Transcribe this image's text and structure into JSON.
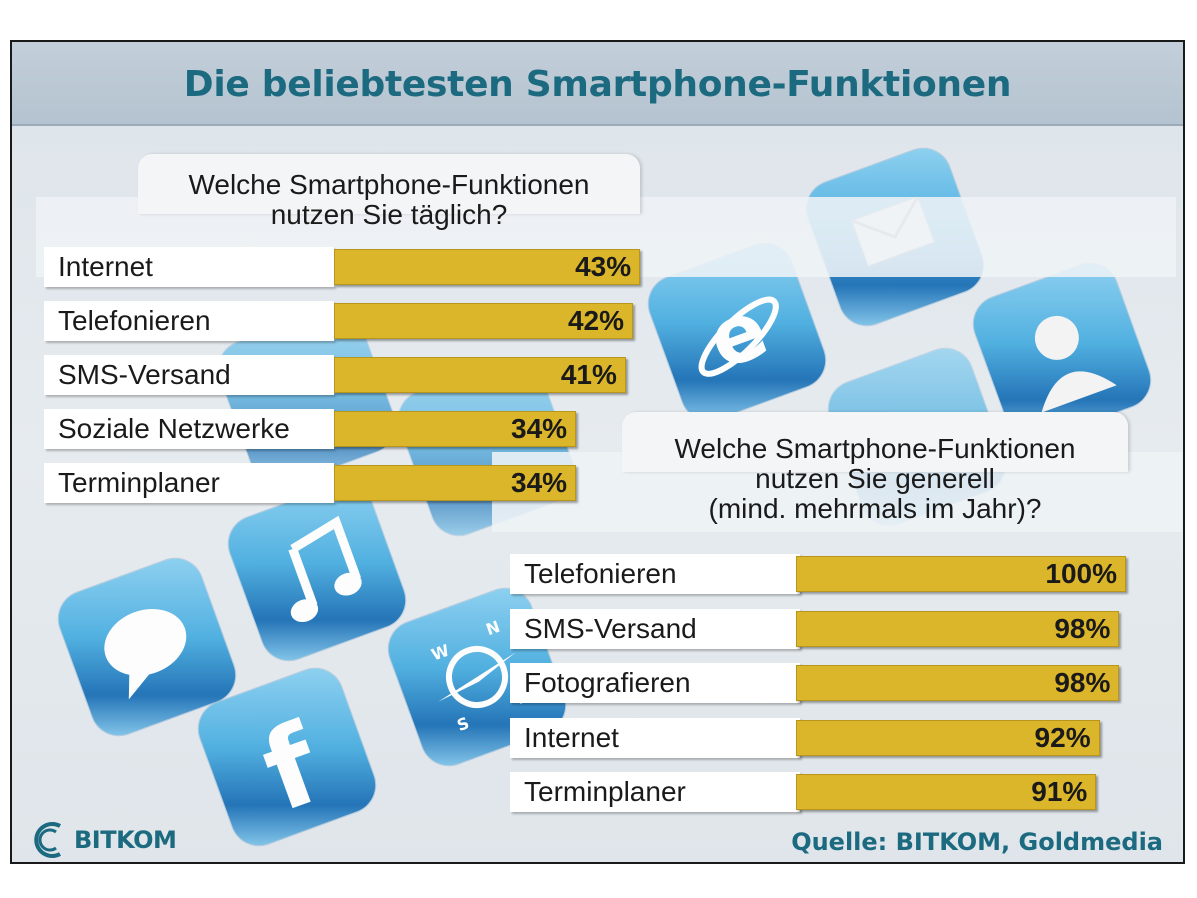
{
  "title": "Die beliebtesten Smartphone-Funktionen",
  "colors": {
    "title": "#1c6a80",
    "bar": "#dcb62a",
    "label_bg": "#ffffff",
    "background": "#e3e9ee"
  },
  "footer": {
    "logo_text": "BITKOM",
    "source": "Quelle: BITKOM, Goldmedia"
  },
  "background_icons": [
    "mail-icon",
    "internet-explorer-icon",
    "contact-icon",
    "music-icon",
    "chat-icon",
    "compass-icon",
    "facebook-icon"
  ],
  "chart_data": [
    {
      "type": "bar",
      "orientation": "horizontal",
      "title": "Welche Smartphone-Funktionen nutzen Sie täglich?",
      "title_lines": [
        "Welche Smartphone-Funktionen",
        "nutzen Sie täglich?"
      ],
      "categories": [
        "Internet",
        "Telefonieren",
        "SMS-Versand",
        "Soziale Netzwerke",
        "Terminplaner"
      ],
      "values": [
        43,
        42,
        41,
        34,
        34
      ],
      "value_labels": [
        "43%",
        "42%",
        "41%",
        "34%",
        "34%"
      ],
      "unit": "%",
      "xlim": [
        0,
        100
      ]
    },
    {
      "type": "bar",
      "orientation": "horizontal",
      "title": "Welche Smartphone-Funktionen nutzen Sie generell (mind. mehrmals im Jahr)?",
      "title_lines": [
        "Welche Smartphone-Funktionen",
        "nutzen Sie generell",
        "(mind. mehrmals im Jahr)?"
      ],
      "categories": [
        "Telefonieren",
        "SMS-Versand",
        "Fotografieren",
        "Internet",
        "Terminplaner"
      ],
      "values": [
        100,
        98,
        98,
        92,
        91
      ],
      "value_labels": [
        "100%",
        "98%",
        "98%",
        "92%",
        "91%"
      ],
      "unit": "%",
      "xlim": [
        0,
        100
      ]
    }
  ]
}
